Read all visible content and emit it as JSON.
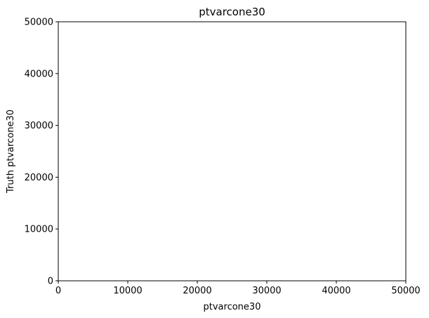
{
  "chart_data": {
    "type": "scatter",
    "title": "ptvarcone30",
    "xlabel": "ptvarcone30",
    "ylabel": "Truth ptvarcone30",
    "xlim": [
      0,
      50000
    ],
    "ylim": [
      0,
      50000
    ],
    "xticks": [
      0,
      10000,
      20000,
      30000,
      40000,
      50000
    ],
    "yticks": [
      0,
      10000,
      20000,
      30000,
      40000,
      50000
    ],
    "series": [
      {
        "x": [],
        "y": []
      }
    ],
    "grid": false
  }
}
